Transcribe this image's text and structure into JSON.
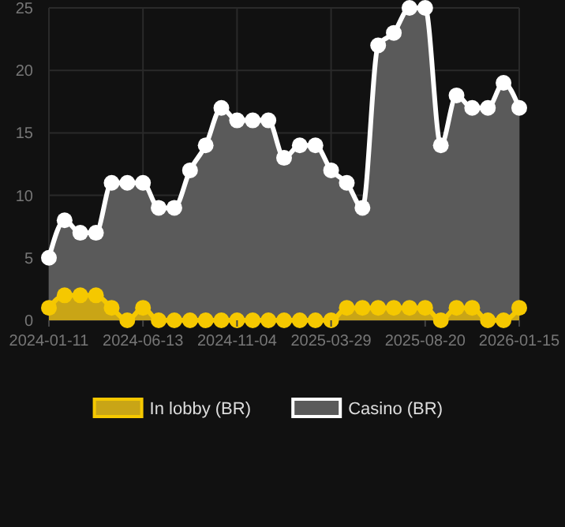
{
  "chart_data": {
    "type": "area",
    "categories": [
      "2024-01-11",
      null,
      null,
      null,
      null,
      null,
      "2024-06-13",
      null,
      null,
      null,
      null,
      null,
      "2024-11-04",
      null,
      null,
      null,
      null,
      null,
      "2025-03-29",
      null,
      null,
      null,
      null,
      null,
      "2025-08-20",
      null,
      null,
      null,
      null,
      null,
      "2026-01-15"
    ],
    "series": [
      {
        "name": "In lobby (BR)",
        "color": "#f5c800",
        "values": [
          1,
          2,
          2,
          2,
          1,
          0,
          1,
          0,
          0,
          0,
          0,
          0,
          0,
          0,
          0,
          0,
          0,
          0,
          0,
          1,
          1,
          1,
          1,
          1,
          1,
          0,
          1,
          1,
          0,
          0,
          1
        ]
      },
      {
        "name": "Casino (BR)",
        "color": "#ffffff",
        "values": [
          5,
          8,
          7,
          7,
          11,
          11,
          11,
          9,
          9,
          12,
          14,
          17,
          16,
          16,
          16,
          13,
          14,
          14,
          12,
          11,
          9,
          22,
          23,
          25,
          25,
          14,
          18,
          17,
          17,
          19,
          17
        ]
      }
    ],
    "ylim": [
      0,
      25
    ],
    "yticks": [
      0,
      5,
      10,
      15,
      20,
      25
    ],
    "grid": true,
    "legend": "bottom",
    "marker": "circle",
    "line_style": "solid"
  }
}
